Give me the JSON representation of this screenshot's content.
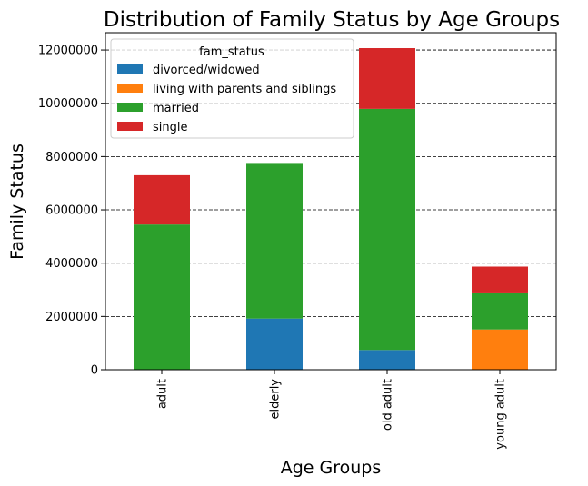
{
  "chart_data": {
    "type": "bar",
    "stacked": true,
    "title": "Distribution of Family Status by Age Groups",
    "xlabel": "Age Groups",
    "ylabel": "Family Status",
    "categories": [
      "adult",
      "elderly",
      "old adult",
      "young adult"
    ],
    "series": [
      {
        "name": "divorced/widowed",
        "color": "#1f77b4",
        "values": [
          0,
          1920000,
          740000,
          0
        ]
      },
      {
        "name": "living with parents and siblings",
        "color": "#ff7f0e",
        "values": [
          0,
          0,
          0,
          1510000
        ]
      },
      {
        "name": "married",
        "color": "#2ca02c",
        "values": [
          5450000,
          5840000,
          9050000,
          1390000
        ]
      },
      {
        "name": "single",
        "color": "#d62728",
        "values": [
          1850000,
          0,
          2280000,
          970000
        ]
      }
    ],
    "ylim": [
      0,
      12650000
    ],
    "yticks": [
      0,
      2000000,
      4000000,
      6000000,
      8000000,
      10000000,
      12000000
    ],
    "ytick_labels": [
      "0",
      "2000000",
      "4000000",
      "6000000",
      "8000000",
      "10000000",
      "12000000"
    ],
    "grid": "y-axis dashed",
    "legend": {
      "title": "fam_status",
      "placement": "top-left"
    }
  }
}
